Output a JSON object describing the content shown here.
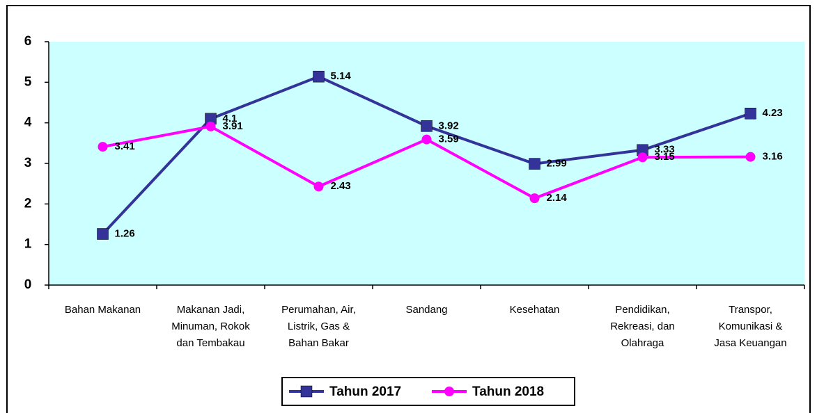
{
  "chart_data": {
    "type": "line",
    "categories": [
      "Bahan Makanan",
      "Makanan Jadi,\nMinuman, Rokok\ndan Tembakau",
      "Perumahan, Air,\nListrik, Gas &\nBahan Bakar",
      "Sandang",
      "Kesehatan",
      "Pendidikan,\nRekreasi, dan\nOlahraga",
      "Transpor,\nKomunikasi &\nJasa Keuangan"
    ],
    "series": [
      {
        "name": "Tahun 2017",
        "color": "#333399",
        "marker": "square",
        "values": [
          1.26,
          4.1,
          5.14,
          3.92,
          2.99,
          3.33,
          4.23
        ]
      },
      {
        "name": "Tahun 2018",
        "color": "#ff00ff",
        "marker": "circle",
        "values": [
          3.41,
          3.91,
          2.43,
          3.59,
          2.14,
          3.15,
          3.16
        ]
      }
    ],
    "ylim": [
      0,
      6
    ],
    "yticks": [
      0,
      1,
      2,
      3,
      4,
      5,
      6
    ],
    "grid": false,
    "legend": "bottom",
    "plot_background": "#ccffff"
  }
}
